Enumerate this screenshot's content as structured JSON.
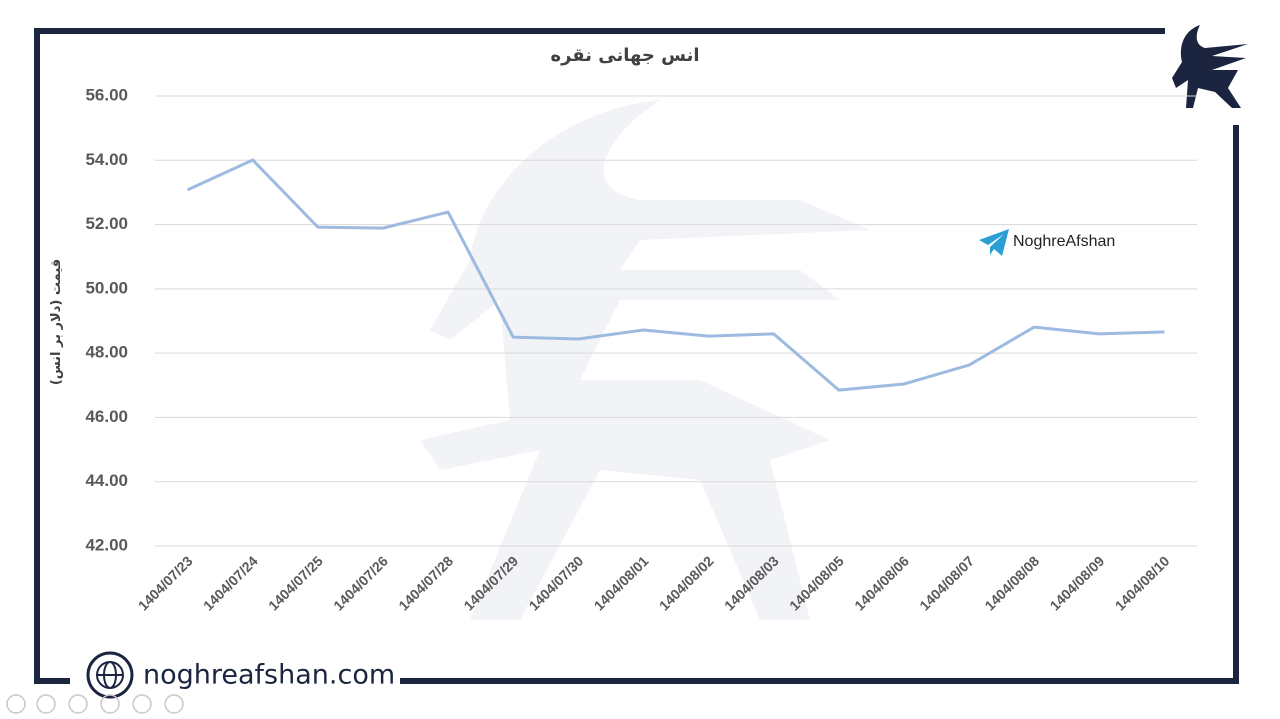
{
  "chart_data": {
    "type": "line",
    "title": "انس جهانی نقره",
    "y_label": "قیمت (دلار بر انس)",
    "categories": [
      "1404/07/23",
      "1404/07/24",
      "1404/07/25",
      "1404/07/26",
      "1404/07/28",
      "1404/07/29",
      "1404/07/30",
      "1404/08/01",
      "1404/08/02",
      "1404/08/03",
      "1404/08/05",
      "1404/08/06",
      "1404/08/07",
      "1404/08/08",
      "1404/08/09",
      "1404/08/10"
    ],
    "values": [
      53.08,
      54.01,
      51.92,
      51.89,
      52.39,
      48.5,
      48.44,
      48.72,
      48.53,
      48.6,
      46.85,
      47.04,
      47.63,
      48.81,
      48.6,
      48.66
    ],
    "color": "#9dbbe0",
    "ylim": [
      42,
      56
    ],
    "yticks": [
      {
        "value": 42,
        "label": "42.00"
      },
      {
        "value": 44,
        "label": "44.00"
      },
      {
        "value": 46,
        "label": "46.00"
      },
      {
        "value": 48,
        "label": "48.00"
      },
      {
        "value": 50,
        "label": "50.00"
      },
      {
        "value": 52,
        "label": "52.00"
      },
      {
        "value": 54,
        "label": "54.00"
      },
      {
        "value": 56,
        "label": "56.00"
      }
    ],
    "grid": true
  },
  "telegram": "NoghreAfshan",
  "website": "noghreafshan.com"
}
